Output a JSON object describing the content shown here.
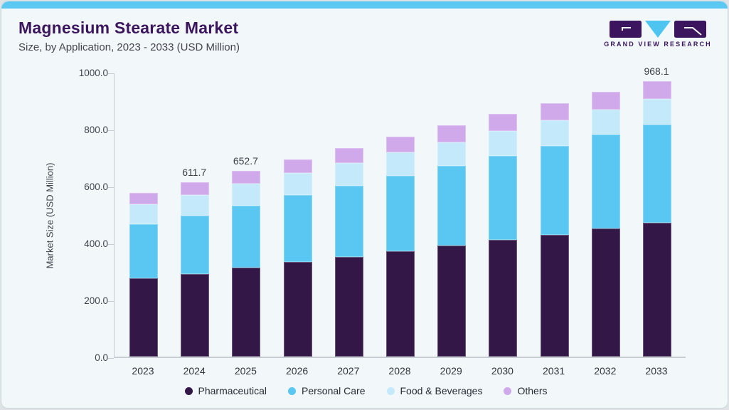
{
  "header": {
    "title": "Magnesium Stearate Market",
    "subtitle": "Size, by Application, 2023 - 2033 (USD Million)"
  },
  "logo": {
    "wordmark": "GRAND VIEW RESEARCH",
    "mark_color": "#3b165e",
    "triangle_color": "#4ec5f1"
  },
  "colors": {
    "accent_bar": "#5ac8f2",
    "card_background": "#f2f7fa",
    "axis": "#c7cdd3",
    "tick_text": "#3e444b",
    "title_text": "#3b165e"
  },
  "chart_data": {
    "type": "bar",
    "variant": "stacked",
    "title": "Magnesium Stearate Market",
    "subtitle": "Size, by Application, 2023 - 2033 (USD Million)",
    "xlabel": "",
    "ylabel": "Market Size (USD Million)",
    "ylim": [
      0,
      1000
    ],
    "yticks": [
      0,
      200,
      400,
      600,
      800,
      1000
    ],
    "ytick_labels": [
      "0.0",
      "200.0",
      "400.0",
      "600.0",
      "800.0",
      "1000.0"
    ],
    "grid": false,
    "legend_position": "bottom",
    "categories": [
      "2023",
      "2024",
      "2025",
      "2026",
      "2027",
      "2028",
      "2029",
      "2030",
      "2031",
      "2032",
      "2033"
    ],
    "series": [
      {
        "name": "Pharmaceutical",
        "color": "#321747",
        "values": [
          274.5,
          290.4,
          312.6,
          332.2,
          351.1,
          370.5,
          389.4,
          410.6,
          427.7,
          449.7,
          470.1
        ]
      },
      {
        "name": "Personal Care",
        "color": "#59c7f2",
        "values": [
          189.8,
          205.8,
          218.5,
          236.1,
          249.4,
          264.2,
          281.8,
          294.6,
          313.2,
          329.6,
          344.9
        ]
      },
      {
        "name": "Food & Beverages",
        "color": "#c3e9fb",
        "values": [
          69.8,
          72.3,
          75.9,
          77.4,
          79.7,
          82.5,
          82.5,
          86.9,
          89.4,
          89.4,
          90.8
        ]
      },
      {
        "name": "Others",
        "color": "#d0a9eb",
        "values": [
          40.9,
          43.2,
          45.7,
          46.8,
          52.4,
          55.4,
          59.8,
          59.8,
          59.8,
          61.3,
          62.3
        ]
      }
    ],
    "totals": [
      574.9,
      611.7,
      652.7,
      692.5,
      732.6,
      772.6,
      813.5,
      851.9,
      890.1,
      930.0,
      968.1
    ],
    "bar_labels": {
      "2024": "611.7",
      "2025": "652.7",
      "2033": "968.1"
    }
  }
}
